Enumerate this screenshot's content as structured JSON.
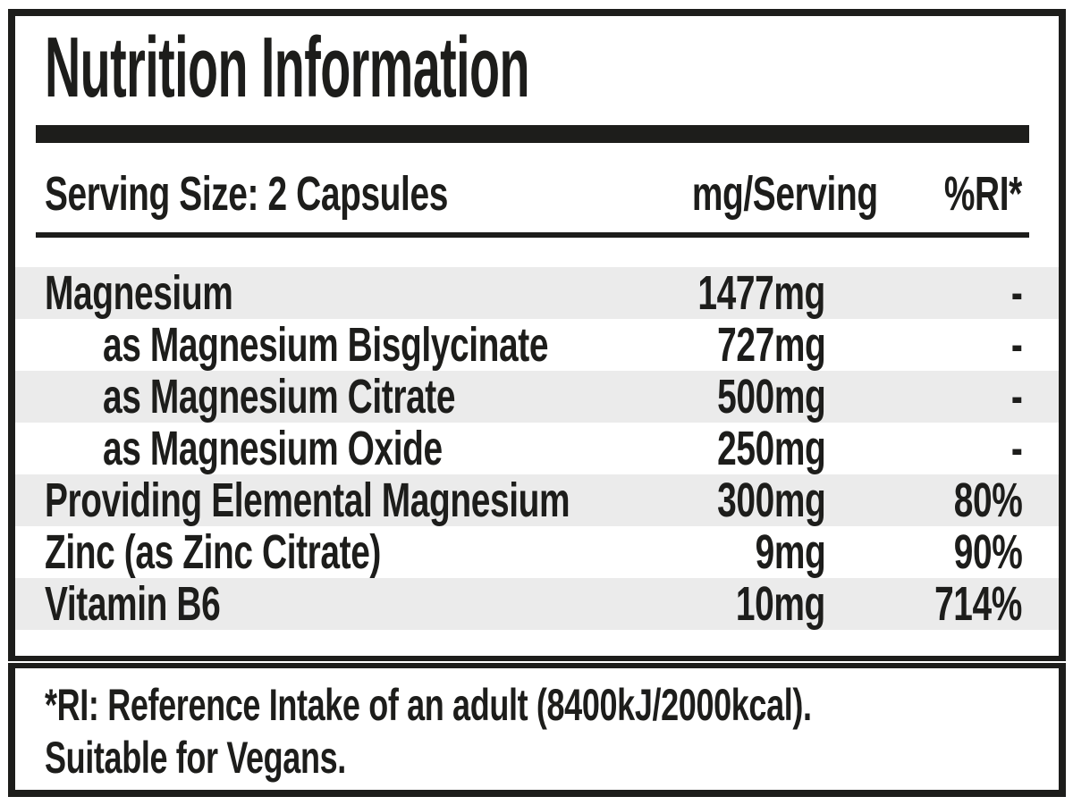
{
  "label": {
    "title": "Nutrition Information",
    "header": {
      "serving": "Serving Size: 2 Capsules",
      "col_mg": "mg/Serving",
      "col_ri": "%RI*"
    },
    "rows": [
      {
        "name": "Magnesium",
        "mg": "1477mg",
        "ri": "-"
      },
      {
        "name": "as Magnesium Bisglycinate",
        "mg": "727mg",
        "ri": "-"
      },
      {
        "name": "as Magnesium Citrate",
        "mg": "500mg",
        "ri": "-"
      },
      {
        "name": "as Magnesium Oxide",
        "mg": "250mg",
        "ri": "-"
      },
      {
        "name": "Providing Elemental Magnesium",
        "mg": "300mg",
        "ri": "80%"
      },
      {
        "name": "Zinc (as Zinc Citrate)",
        "mg": "9mg",
        "ri": "90%"
      },
      {
        "name": "Vitamin B6",
        "mg": "10mg",
        "ri": "714%"
      }
    ],
    "footnote_line1": "*RI: Reference Intake of an adult (8400kJ/2000kcal).",
    "footnote_line2": "Suitable for Vegans.",
    "colors": {
      "ink": "#1d1d1b",
      "row_shade": "#ebebeb",
      "background": "#ffffff"
    }
  }
}
